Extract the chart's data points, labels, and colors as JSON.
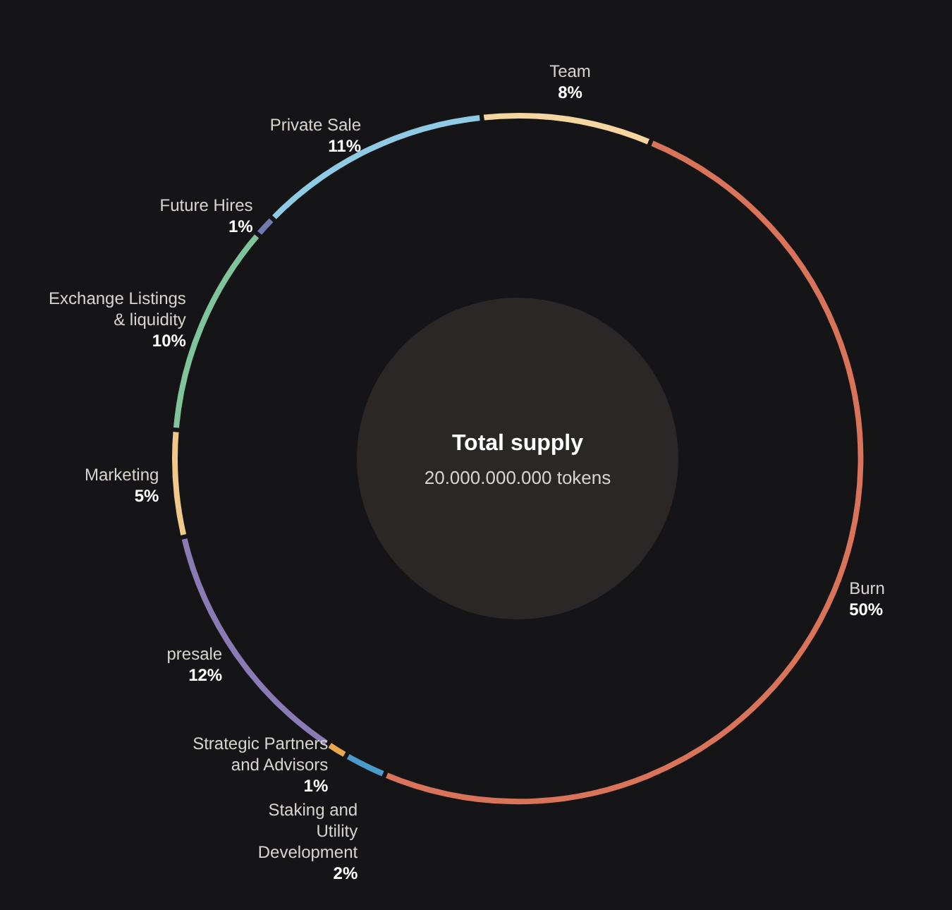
{
  "chart_data": {
    "type": "donut",
    "title": "Total supply",
    "subtitle": "20.000.000.000 tokens",
    "categories": [
      "Team",
      "Burn",
      "Staking and Utility Development",
      "Strategic Partners and Advisors",
      "presale",
      "Marketing",
      "Exchange Listings & liquidity",
      "Future Hires",
      "Private Sale"
    ],
    "values": [
      8,
      50,
      2,
      1,
      12,
      5,
      10,
      1,
      11
    ],
    "colors": [
      "#f5d5a0",
      "#d9735a",
      "#4a9acc",
      "#e8a84a",
      "#8b7bb5",
      "#f0c98a",
      "#7fc49a",
      "#6f7bb0",
      "#8fcbe4"
    ],
    "value_labels": [
      "8%",
      "50%",
      "2%",
      "1%",
      "12%",
      "5%",
      "10%",
      "1%",
      "11%"
    ]
  }
}
